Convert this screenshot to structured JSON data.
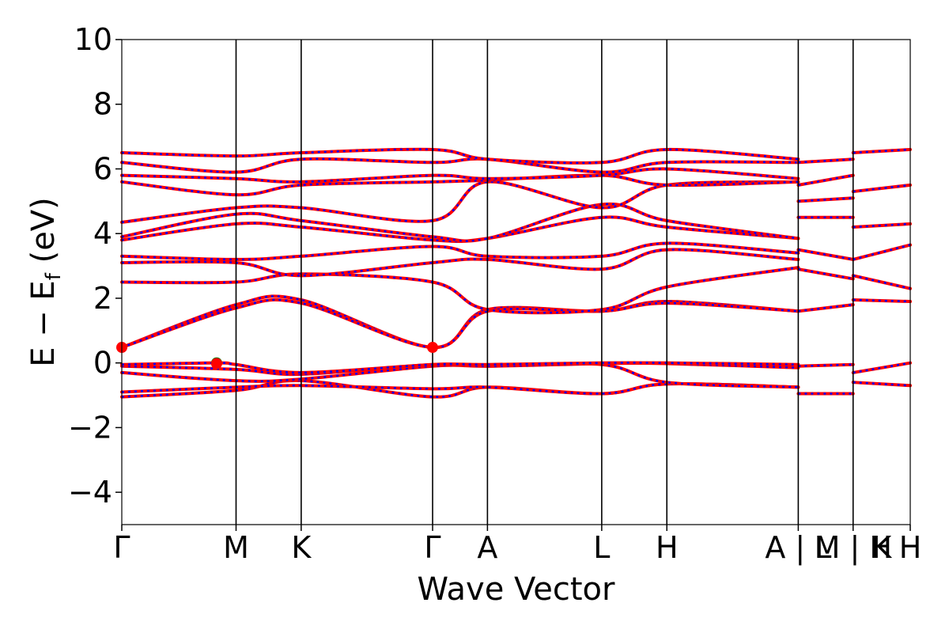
{
  "chart_data": {
    "type": "line",
    "title": "",
    "xlabel": "Wave Vector",
    "ylabel_main": "E − E",
    "ylabel_sub": "f",
    "ylabel_tail": " (eV)",
    "ylim": [
      -5,
      10
    ],
    "yticks": [
      -4,
      -2,
      0,
      2,
      4,
      6,
      8,
      10
    ],
    "ytick_labels": [
      "−4",
      "−2",
      "0",
      "2",
      "4",
      "6",
      "8",
      "10"
    ],
    "grid": false,
    "legend": "none",
    "kpath_positions": [
      0,
      1.0,
      1.57,
      2.72,
      3.2,
      4.2,
      4.77,
      5.92,
      6.4,
      6.9
    ],
    "kpath_labels": [
      "Γ",
      "M",
      "K",
      "Γ",
      "A",
      "L",
      "H",
      "A | L",
      "M | H",
      "K",
      "H"
    ],
    "kpath_label_positions": [
      0,
      1.0,
      1.57,
      2.72,
      3.2,
      4.2,
      4.77,
      5.92,
      6.4,
      6.65,
      6.9
    ],
    "colors": {
      "band_red": "#ff0000",
      "band_blue": "#0000ff",
      "vbm_marker": "#008000",
      "cbm_marker": "#ff0000",
      "vline": "#000000"
    },
    "markers": [
      {
        "name": "cbm-gamma-left",
        "k": 0.0,
        "e": 0.48,
        "color": "#ff0000"
      },
      {
        "name": "cbm-gamma-mid",
        "k": 2.72,
        "e": 0.48,
        "color": "#ff0000"
      },
      {
        "name": "vbm-near-M",
        "k": 0.83,
        "e": 0.0,
        "color": "#008000"
      },
      {
        "name": "vbm-near-M-red",
        "k": 0.83,
        "e": -0.02,
        "color": "#ff0000"
      }
    ],
    "series": [
      {
        "k": [
          0,
          1.0,
          1.57,
          2.72,
          3.2,
          4.2,
          4.77,
          5.92
        ],
        "e": [
          -1.05,
          -0.85,
          -0.55,
          -1.05,
          -0.75,
          -0.95,
          -0.65,
          -0.75
        ]
      },
      {
        "k": [
          0,
          1.0,
          1.57,
          2.72,
          3.2,
          4.2,
          4.77,
          5.92
        ],
        "e": [
          -0.9,
          -0.75,
          -0.7,
          -0.8,
          -0.75,
          -0.95,
          -0.65,
          -0.75
        ]
      },
      {
        "k": [
          0,
          1.0,
          1.57,
          2.72,
          3.2,
          4.2,
          4.77,
          5.92
        ],
        "e": [
          -0.3,
          -0.55,
          -0.5,
          -0.1,
          -0.1,
          -0.05,
          -0.6,
          -0.75
        ]
      },
      {
        "k": [
          0,
          1.0,
          1.57,
          2.72,
          3.2,
          4.2,
          4.77,
          5.92
        ],
        "e": [
          -0.1,
          -0.2,
          -0.35,
          -0.05,
          -0.1,
          -0.02,
          -0.02,
          -0.15
        ]
      },
      {
        "k": [
          0,
          0.83,
          1.0,
          1.57,
          2.72,
          3.2,
          4.2,
          4.77,
          5.92
        ],
        "e": [
          -0.05,
          0.0,
          -0.05,
          -0.3,
          -0.05,
          -0.05,
          0.0,
          0.0,
          -0.05
        ]
      },
      {
        "k": [
          0,
          1.0,
          1.57,
          2.72,
          3.2,
          4.2,
          4.77,
          5.92
        ],
        "e": [
          0.48,
          1.8,
          1.95,
          0.48,
          1.65,
          1.6,
          1.9,
          1.6
        ]
      },
      {
        "k": [
          0,
          1.0,
          1.57,
          2.72,
          3.2,
          4.2,
          4.77,
          5.92
        ],
        "e": [
          0.48,
          1.7,
          1.85,
          0.48,
          1.6,
          1.6,
          1.85,
          1.6
        ]
      },
      {
        "k": [
          0,
          1.0,
          1.57,
          2.72,
          3.2,
          4.2,
          4.77,
          5.92
        ],
        "e": [
          2.5,
          2.5,
          2.75,
          2.5,
          1.65,
          1.65,
          2.35,
          2.95
        ]
      },
      {
        "k": [
          0,
          1.0,
          1.57,
          2.72,
          3.2,
          4.2,
          4.77,
          5.92
        ],
        "e": [
          3.1,
          3.1,
          2.7,
          3.1,
          3.2,
          2.9,
          3.5,
          3.2
        ]
      },
      {
        "k": [
          0,
          1.0,
          1.57,
          2.72,
          3.2,
          4.2,
          4.77,
          5.92
        ],
        "e": [
          3.3,
          3.2,
          3.3,
          3.6,
          3.3,
          3.3,
          3.7,
          3.4
        ]
      },
      {
        "k": [
          0,
          1.0,
          1.57,
          2.72,
          3.2,
          4.2,
          4.77,
          5.92
        ],
        "e": [
          3.8,
          4.3,
          4.2,
          3.8,
          3.85,
          4.5,
          4.2,
          3.85
        ]
      },
      {
        "k": [
          0,
          1.0,
          1.57,
          2.72,
          3.2,
          4.2,
          4.77,
          5.92
        ],
        "e": [
          3.9,
          4.6,
          4.4,
          3.9,
          3.85,
          4.9,
          4.4,
          3.85
        ]
      },
      {
        "k": [
          0,
          1.0,
          1.57,
          2.72,
          3.2,
          4.2,
          4.77,
          5.92
        ],
        "e": [
          4.35,
          4.8,
          4.8,
          4.4,
          5.6,
          4.8,
          5.5,
          5.6
        ]
      },
      {
        "k": [
          0,
          1.0,
          1.57,
          2.72,
          3.2,
          4.2,
          4.77,
          5.92
        ],
        "e": [
          5.6,
          5.2,
          5.5,
          5.6,
          5.65,
          5.8,
          5.5,
          5.6
        ]
      },
      {
        "k": [
          0,
          1.0,
          1.57,
          2.72,
          3.2,
          4.2,
          4.77,
          5.92
        ],
        "e": [
          5.8,
          5.7,
          5.6,
          5.8,
          5.7,
          5.8,
          6.0,
          5.7
        ]
      },
      {
        "k": [
          0,
          1.0,
          1.57,
          2.72,
          3.2,
          4.2,
          4.77,
          5.92
        ],
        "e": [
          6.2,
          5.9,
          6.3,
          6.2,
          6.3,
          5.9,
          6.2,
          6.2
        ]
      },
      {
        "k": [
          0,
          1.0,
          1.57,
          2.72,
          3.2,
          4.2,
          4.77,
          5.92
        ],
        "e": [
          6.5,
          6.4,
          6.5,
          6.6,
          6.3,
          6.2,
          6.6,
          6.3
        ]
      },
      {
        "k": [
          5.92,
          6.4
        ],
        "e": [
          -0.95,
          -0.95
        ]
      },
      {
        "k": [
          5.92,
          6.4
        ],
        "e": [
          -0.1,
          -0.05
        ]
      },
      {
        "k": [
          5.92,
          6.4
        ],
        "e": [
          1.6,
          1.8
        ]
      },
      {
        "k": [
          5.92,
          6.4
        ],
        "e": [
          2.9,
          2.6
        ]
      },
      {
        "k": [
          5.92,
          6.4
        ],
        "e": [
          3.5,
          3.2
        ]
      },
      {
        "k": [
          5.92,
          6.4
        ],
        "e": [
          4.5,
          4.5
        ]
      },
      {
        "k": [
          5.92,
          6.4
        ],
        "e": [
          5.0,
          5.1
        ]
      },
      {
        "k": [
          5.92,
          6.4
        ],
        "e": [
          5.5,
          5.8
        ]
      },
      {
        "k": [
          5.92,
          6.4
        ],
        "e": [
          6.2,
          6.3
        ]
      },
      {
        "k": [
          6.4,
          6.9
        ],
        "e": [
          -0.3,
          0.0
        ]
      },
      {
        "k": [
          6.4,
          6.9
        ],
        "e": [
          -0.6,
          -0.7
        ]
      },
      {
        "k": [
          6.4,
          6.9
        ],
        "e": [
          1.95,
          1.9
        ]
      },
      {
        "k": [
          6.4,
          6.9
        ],
        "e": [
          2.7,
          2.3
        ]
      },
      {
        "k": [
          6.4,
          6.9
        ],
        "e": [
          3.2,
          3.65
        ]
      },
      {
        "k": [
          6.4,
          6.9
        ],
        "e": [
          4.2,
          4.3
        ]
      },
      {
        "k": [
          6.4,
          6.9
        ],
        "e": [
          5.3,
          5.5
        ]
      },
      {
        "k": [
          6.4,
          6.9
        ],
        "e": [
          6.5,
          6.6
        ]
      }
    ]
  }
}
